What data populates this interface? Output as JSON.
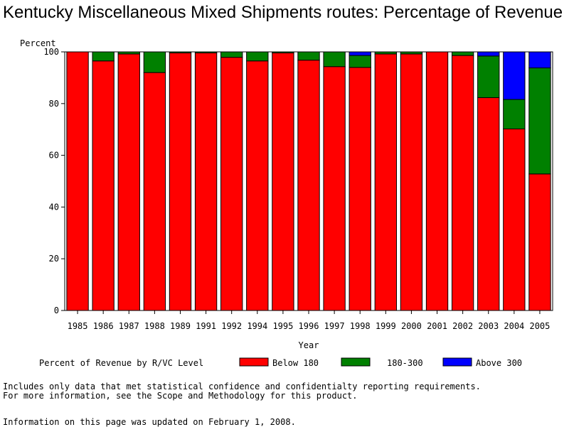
{
  "chart_data": {
    "type": "bar",
    "stacked": true,
    "title": "Kentucky Miscellaneous Mixed Shipments routes: Percentage of Revenue",
    "ylabel": "Percent",
    "xlabel": "Year",
    "ylim": [
      0,
      100
    ],
    "yticks": [
      0,
      20,
      40,
      60,
      80,
      100
    ],
    "categories": [
      "1985",
      "1986",
      "1987",
      "1988",
      "1989",
      "1991",
      "1992",
      "1994",
      "1995",
      "1996",
      "1997",
      "1998",
      "1999",
      "2000",
      "2001",
      "2002",
      "2003",
      "2004",
      "2005"
    ],
    "series": [
      {
        "name": "Below 180",
        "color": "#ff0000",
        "values": [
          100,
          96.5,
          99.2,
          92.0,
          99.6,
          99.6,
          97.9,
          96.5,
          99.6,
          96.8,
          94.3,
          94.0,
          99.2,
          99.2,
          100,
          98.6,
          82.3,
          70.2,
          52.8
        ]
      },
      {
        "name": "180-300",
        "color": "#008000",
        "values": [
          0,
          3.5,
          0.8,
          8.0,
          0.4,
          0.4,
          2.1,
          3.5,
          0.4,
          3.2,
          5.7,
          4.6,
          0.8,
          0.8,
          0,
          1.4,
          16.1,
          11.4,
          41.0
        ]
      },
      {
        "name": "Above 300",
        "color": "#0000ff",
        "values": [
          0,
          0,
          0,
          0,
          0,
          0,
          0,
          0,
          0,
          0,
          0,
          1.4,
          0,
          0,
          0,
          0,
          1.6,
          18.4,
          6.2
        ]
      }
    ],
    "legend": {
      "title": "Percent of Revenue by R/VC Level",
      "placement": "bottom"
    }
  },
  "footnotes": {
    "line1": "Includes only data that met statistical confidence and confidentialty reporting requirements.",
    "line2": "For more information, see the Scope and Methodology for this product.",
    "line3": "Information on this page was updated on February 1, 2008."
  }
}
